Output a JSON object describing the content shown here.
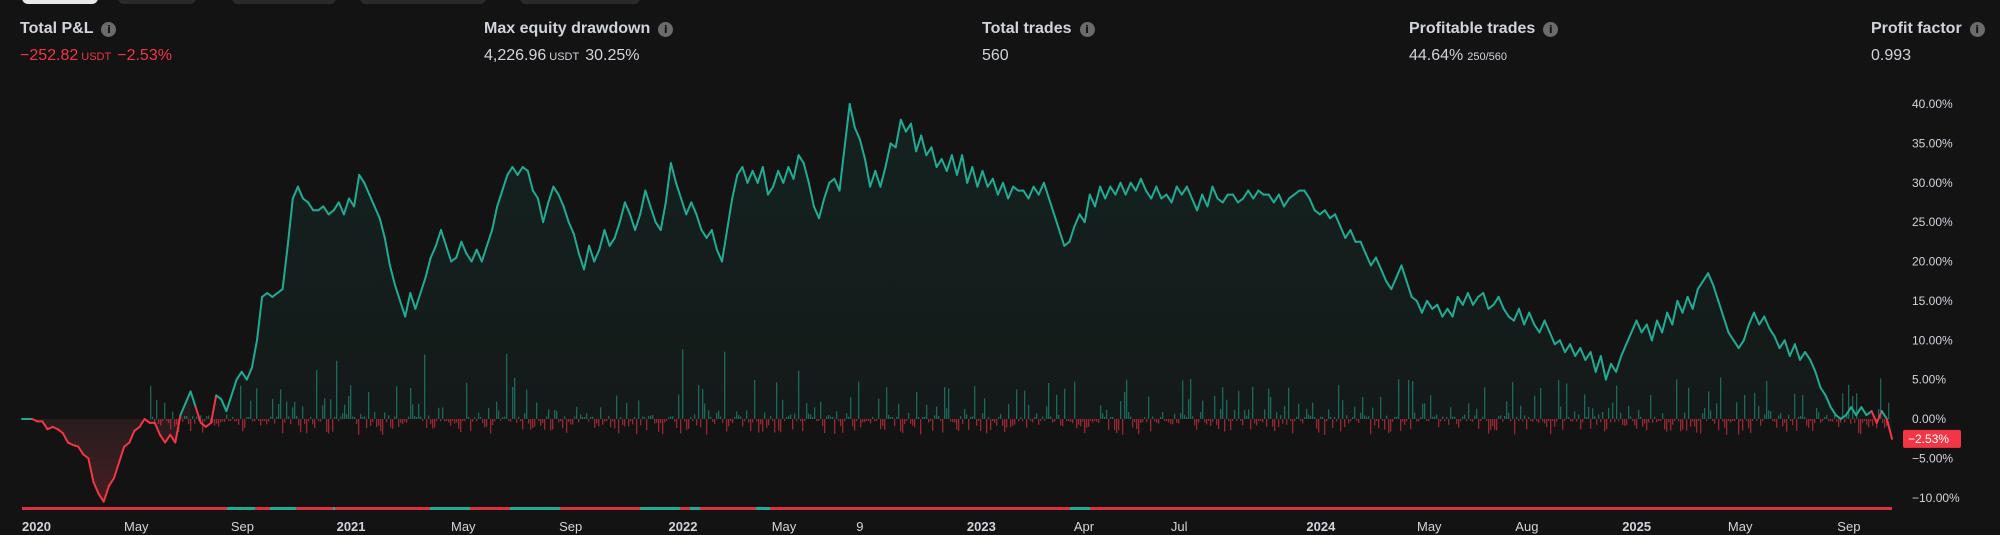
{
  "stats": [
    {
      "title": "Total P&L",
      "value": "−252.82",
      "unit": "USDT",
      "extra": "−2.53%",
      "negative": true
    },
    {
      "title": "Max equity drawdown",
      "value": "4,226.96",
      "unit": "USDT",
      "extra": "30.25%",
      "negative": false
    },
    {
      "title": "Total trades",
      "value": "560",
      "unit": "",
      "extra": "",
      "negative": false
    },
    {
      "title": "Profitable trades",
      "value": "44.64%",
      "unit": "",
      "extra": "250/560",
      "negative": false
    },
    {
      "title": "Profit factor",
      "value": "0.993",
      "unit": "",
      "extra": "",
      "negative": false
    }
  ],
  "info_glyph": "i",
  "current_value_label": "−2.53%",
  "colors": {
    "positive": "#22ab94",
    "negative": "#f23645",
    "background": "#131313",
    "text": "#d1d4dc"
  },
  "chart_data": {
    "type": "line",
    "title": "",
    "xlabel": "",
    "ylabel": "",
    "ylim": [
      -12,
      42
    ],
    "y_ticks": [
      40,
      35,
      30,
      25,
      20,
      15,
      10,
      5,
      0,
      -5,
      -10
    ],
    "y_tick_labels": [
      "40.00%",
      "35.00%",
      "30.00%",
      "25.00%",
      "20.00%",
      "15.00%",
      "10.00%",
      "5.00%",
      "0.00%",
      "−5.00%",
      "−10.00%"
    ],
    "x_ticks": [
      {
        "label": "2020",
        "t": 0.0
      },
      {
        "label": "May",
        "t": 0.082
      },
      {
        "label": "Sep",
        "t": 0.168
      },
      {
        "label": "2021",
        "t": 0.253
      },
      {
        "label": "May",
        "t": 0.345
      },
      {
        "label": "Sep",
        "t": 0.432
      },
      {
        "label": "2022",
        "t": 0.52
      },
      {
        "label": "May",
        "t": 0.603
      },
      {
        "label": "9",
        "t": 0.671
      },
      {
        "label": "2023",
        "t": 0.76
      },
      {
        "label": "Apr",
        "t": 0.846
      },
      {
        "label": "Jul",
        "t": 0.924
      },
      {
        "label": "2024",
        "t": 1.033
      },
      {
        "label": "May",
        "t": 1.122
      },
      {
        "label": "Aug",
        "t": 1.201
      },
      {
        "label": "2025",
        "t": 1.287
      },
      {
        "label": "May",
        "t": 1.372
      },
      {
        "label": "Sep",
        "t": 1.46
      }
    ],
    "grid": false,
    "series": [
      {
        "values": [
          0,
          0,
          0,
          -0.3,
          -0.3,
          -1.3,
          -1.0,
          -1.3,
          -1.8,
          -3.0,
          -3.3,
          -3.5,
          -4.5,
          -5.0,
          -8.0,
          -9.5,
          -10.5,
          -8.5,
          -7.5,
          -5.5,
          -3.5,
          -3.0,
          -1.5,
          -1.0,
          0,
          -0.5,
          -0.5,
          -2.0,
          -3.0,
          -2.0,
          -3.0,
          0.5,
          2.0,
          3.5,
          1.5,
          -0.5,
          -1.0,
          -0.5,
          3.0,
          2.5,
          1.0,
          3.0,
          5.0,
          6.0,
          5.0,
          6.5,
          10.0,
          15.5,
          16.0,
          15.5,
          16.0,
          16.5,
          22.0,
          28.0,
          29.5,
          28.0,
          27.5,
          26.5,
          26.5,
          27.0,
          26.0,
          26.5,
          27.5,
          26.0,
          28.0,
          27.0,
          31.0,
          30.0,
          28.5,
          27.0,
          25.5,
          23.0,
          19.5,
          17.0,
          15.0,
          13.0,
          16.0,
          14.0,
          16.0,
          18.0,
          20.5,
          22.0,
          24.0,
          22.0,
          20.0,
          20.5,
          22.5,
          21.0,
          20.0,
          21.5,
          20.0,
          22.0,
          24.0,
          27.0,
          29.0,
          31.0,
          32.0,
          31.0,
          32.0,
          31.5,
          29.0,
          28.0,
          25.0,
          27.5,
          29.5,
          28.5,
          27.0,
          25.0,
          23.5,
          21.0,
          19.0,
          22.0,
          20.0,
          21.5,
          24.0,
          22.0,
          23.0,
          25.0,
          27.5,
          26.0,
          24.0,
          26.0,
          29.0,
          27.0,
          25.0,
          24.0,
          27.5,
          32.5,
          30.0,
          28.0,
          26.0,
          27.5,
          26.0,
          24.0,
          23.0,
          24.0,
          21.5,
          20.0,
          24.0,
          28.0,
          31.0,
          32.0,
          30.0,
          31.5,
          30.0,
          32.0,
          28.5,
          29.5,
          31.5,
          30.0,
          32.0,
          30.5,
          33.5,
          32.5,
          30.0,
          27.0,
          25.5,
          28.0,
          30.0,
          30.5,
          29.0,
          34.5,
          40.0,
          37.0,
          35.5,
          33.0,
          29.5,
          31.5,
          29.5,
          32.0,
          35.0,
          34.5,
          38.0,
          36.5,
          37.5,
          34.0,
          36.0,
          33.5,
          34.5,
          32.0,
          33.0,
          31.5,
          33.5,
          31.0,
          33.5,
          30.0,
          32.0,
          29.5,
          31.5,
          29.5,
          30.5,
          28.5,
          30.0,
          28.0,
          29.5,
          29.0,
          29.0,
          28.0,
          29.5,
          28.5,
          30.0,
          28.0,
          26.0,
          24.0,
          22.0,
          22.5,
          24.5,
          26.0,
          25.0,
          28.5,
          27.0,
          29.5,
          28.0,
          29.5,
          28.5,
          30.0,
          28.5,
          30.0,
          29.0,
          30.5,
          29.0,
          28.0,
          29.5,
          28.0,
          28.5,
          27.5,
          29.5,
          28.5,
          29.5,
          28.0,
          26.5,
          28.5,
          27.0,
          29.5,
          28.0,
          27.5,
          28.5,
          28.5,
          27.5,
          28.0,
          29.0,
          28.0,
          29.0,
          28.5,
          28.5,
          27.5,
          28.5,
          27.0,
          28.0,
          28.5,
          29.0,
          29.0,
          28.0,
          26.5,
          26.0,
          26.5,
          25.5,
          26.0,
          24.5,
          23.0,
          24.0,
          22.5,
          22.5,
          21.0,
          19.5,
          20.5,
          19.0,
          17.5,
          16.5,
          18.0,
          19.5,
          17.5,
          15.5,
          15.0,
          13.5,
          15.0,
          14.0,
          14.5,
          13.0,
          14.0,
          13.0,
          15.5,
          14.5,
          16.0,
          14.5,
          15.5,
          16.0,
          14.0,
          14.5,
          15.5,
          14.0,
          13.0,
          12.5,
          14.0,
          12.0,
          13.5,
          12.0,
          11.0,
          12.5,
          11.0,
          9.5,
          10.0,
          8.5,
          9.5,
          8.0,
          9.0,
          7.5,
          8.5,
          6.0,
          8.0,
          5.0,
          7.0,
          6.0,
          8.0,
          9.5,
          11.0,
          12.5,
          11.0,
          12.0,
          10.0,
          12.5,
          11.0,
          13.5,
          12.0,
          15.0,
          13.5,
          15.5,
          14.0,
          16.5,
          17.5,
          18.5,
          17.0,
          15.0,
          13.0,
          11.0,
          10.0,
          9.0,
          10.0,
          12.0,
          13.5,
          12.0,
          13.0,
          11.5,
          10.5,
          9.0,
          10.0,
          8.0,
          9.5,
          7.5,
          8.5,
          7.5,
          6.0,
          4.0,
          3.0,
          1.5,
          0.5,
          0,
          0.5,
          1.5,
          0.5,
          1.5,
          0.5,
          1.0,
          -0.5,
          1.0,
          0,
          -2.53
        ]
      }
    ]
  }
}
